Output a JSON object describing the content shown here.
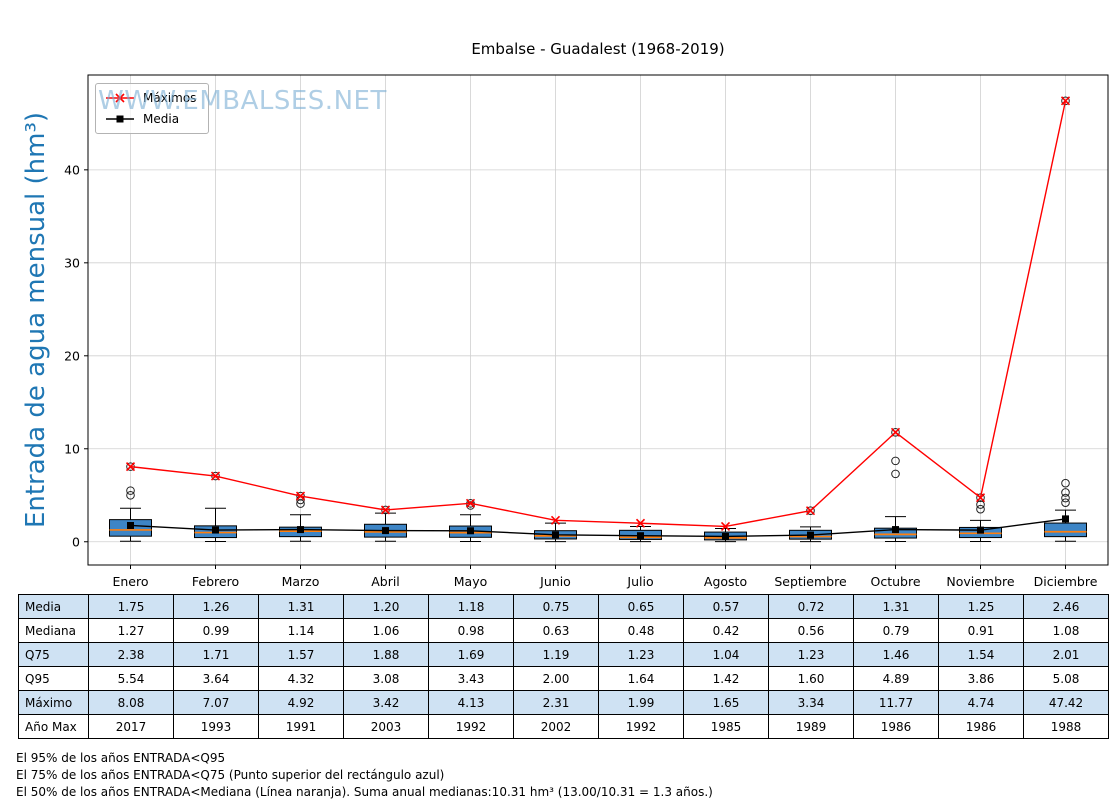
{
  "title": "Embalse - Guadalest (1968-2019)",
  "watermark": "WWW.EMBALSES.NET",
  "ylabel": "Entrada de agua mensual (hm³)",
  "legend": [
    {
      "label": "Máximos"
    },
    {
      "label": "Media"
    }
  ],
  "colors": {
    "ylabel": "#1f77b4",
    "watermark": "#7bafd4",
    "table_shade": "#cfe2f3"
  },
  "chart_data": {
    "type": "boxplot",
    "title": "Embalse - Guadalest (1968-2019)",
    "ylabel": "Entrada de agua mensual (hm³)",
    "categories": [
      "Enero",
      "Febrero",
      "Marzo",
      "Abril",
      "Mayo",
      "Junio",
      "Julio",
      "Agosto",
      "Septiembre",
      "Octubre",
      "Noviembre",
      "Diciembre"
    ],
    "ylim": [
      -2.5,
      50.2
    ],
    "yticks": [
      0,
      10,
      20,
      30,
      40
    ],
    "grid": true,
    "legend_position": "upper left",
    "series": [
      {
        "name": "Máximos",
        "type": "line",
        "marker": "x",
        "color": "#ff0000",
        "values": [
          8.08,
          7.07,
          4.92,
          3.42,
          4.13,
          2.31,
          1.99,
          1.65,
          3.34,
          11.77,
          4.74,
          47.42
        ]
      },
      {
        "name": "Media",
        "type": "line",
        "marker": "square",
        "color": "#000000",
        "values": [
          1.75,
          1.26,
          1.31,
          1.2,
          1.18,
          0.75,
          0.65,
          0.57,
          0.72,
          1.31,
          1.25,
          2.46
        ]
      }
    ],
    "box": {
      "median": [
        1.27,
        0.99,
        1.14,
        1.06,
        0.98,
        0.63,
        0.48,
        0.42,
        0.56,
        0.79,
        0.91,
        1.08
      ],
      "q75": [
        2.38,
        1.71,
        1.57,
        1.88,
        1.69,
        1.19,
        1.23,
        1.04,
        1.23,
        1.46,
        1.54,
        2.01
      ],
      "q95": [
        5.54,
        3.64,
        4.32,
        3.08,
        3.43,
        2.0,
        1.64,
        1.42,
        1.6,
        4.89,
        3.86,
        5.08
      ],
      "q25_est": [
        0.6,
        0.45,
        0.55,
        0.5,
        0.48,
        0.3,
        0.25,
        0.2,
        0.28,
        0.4,
        0.45,
        0.55
      ],
      "whisker_low_est": [
        0.05,
        0.03,
        0.05,
        0.05,
        0.03,
        0.02,
        0.02,
        0.01,
        0.02,
        0.03,
        0.03,
        0.05
      ],
      "whisker_high_est": [
        3.6,
        3.6,
        2.9,
        3.08,
        2.9,
        2.0,
        1.64,
        1.42,
        1.6,
        2.7,
        2.3,
        3.4
      ],
      "outliers_est": [
        [
          5.0,
          5.5,
          8.08
        ],
        [
          7.07
        ],
        [
          4.1,
          4.5,
          4.92
        ],
        [
          3.42
        ],
        [
          3.9,
          4.13
        ],
        [],
        [],
        [],
        [
          3.34
        ],
        [
          7.3,
          8.7,
          11.77
        ],
        [
          3.5,
          4.0,
          4.74
        ],
        [
          4.2,
          4.7,
          5.3,
          6.3,
          47.42
        ]
      ]
    },
    "colors": {
      "box_fill": "#3d85c6",
      "box_edge": "#000000",
      "median": "#ff7f0e",
      "grid": "#d0d0d0",
      "axis": "#000000"
    }
  },
  "table": {
    "rows": [
      {
        "label": "Media",
        "values": [
          "1.75",
          "1.26",
          "1.31",
          "1.20",
          "1.18",
          "0.75",
          "0.65",
          "0.57",
          "0.72",
          "1.31",
          "1.25",
          "2.46"
        ]
      },
      {
        "label": "Mediana",
        "values": [
          "1.27",
          "0.99",
          "1.14",
          "1.06",
          "0.98",
          "0.63",
          "0.48",
          "0.42",
          "0.56",
          "0.79",
          "0.91",
          "1.08"
        ]
      },
      {
        "label": "Q75",
        "values": [
          "2.38",
          "1.71",
          "1.57",
          "1.88",
          "1.69",
          "1.19",
          "1.23",
          "1.04",
          "1.23",
          "1.46",
          "1.54",
          "2.01"
        ]
      },
      {
        "label": "Q95",
        "values": [
          "5.54",
          "3.64",
          "4.32",
          "3.08",
          "3.43",
          "2.00",
          "1.64",
          "1.42",
          "1.60",
          "4.89",
          "3.86",
          "5.08"
        ]
      },
      {
        "label": "Máximo",
        "values": [
          "8.08",
          "7.07",
          "4.92",
          "3.42",
          "4.13",
          "2.31",
          "1.99",
          "1.65",
          "3.34",
          "11.77",
          "4.74",
          "47.42"
        ]
      },
      {
        "label": "Año Max",
        "values": [
          "2017",
          "1993",
          "1991",
          "2003",
          "1992",
          "2002",
          "1992",
          "1985",
          "1989",
          "1986",
          "1986",
          "1988"
        ]
      }
    ],
    "shaded_rows": [
      0,
      2,
      4
    ]
  },
  "footnotes": [
    "El 95% de los años ENTRADA<Q95",
    "El 75% de los años ENTRADA<Q75 (Punto superior del rectángulo azul)",
    "El 50% de los años ENTRADA<Mediana (Línea naranja). Suma anual medianas:10.31 hm³ (13.00/10.31 = 1.3 años.)"
  ]
}
